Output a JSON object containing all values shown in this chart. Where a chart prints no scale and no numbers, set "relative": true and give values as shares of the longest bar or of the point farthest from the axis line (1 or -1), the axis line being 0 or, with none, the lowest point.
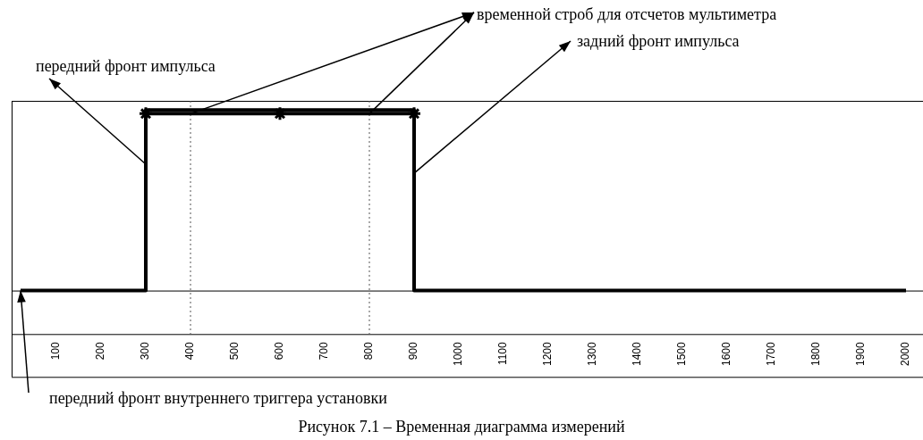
{
  "chart_data": {
    "type": "step",
    "relative": true,
    "xlim": [
      0,
      2000
    ],
    "xticks": [
      100,
      200,
      300,
      400,
      500,
      600,
      700,
      800,
      900,
      1000,
      1100,
      1200,
      1300,
      1400,
      1500,
      1600,
      1700,
      1800,
      1900,
      2000
    ],
    "series": [
      {
        "x": [
          20,
          300,
          900,
          2000
        ],
        "values": [
          0,
          1,
          0,
          0
        ],
        "color": "#000000",
        "marker": "none"
      },
      {
        "type": "line",
        "x": [
          300,
          600,
          900
        ],
        "values": [
          0.98,
          0.98,
          0.98
        ],
        "color": "#000000",
        "marker": "cross"
      }
    ],
    "ref_lines": [
      {
        "axis": "x",
        "value": 400,
        "line_style": "dotted"
      },
      {
        "axis": "x",
        "value": 800,
        "line_style": "dotted"
      }
    ],
    "annotations": [
      {
        "text": "передний фронт импульса",
        "x": 300,
        "y": 0.7
      },
      {
        "text": "временной строб для отсчетов мультиметра",
        "x": 400,
        "y": 0.98
      },
      {
        "text": "задний фронт импульса",
        "x": 900,
        "y": 0.65
      },
      {
        "text": "передний фронт внутреннего триггера установки",
        "x": 20,
        "y": 0
      },
      "Рисунок 7.1 – Временная диаграмма измерений"
    ]
  }
}
